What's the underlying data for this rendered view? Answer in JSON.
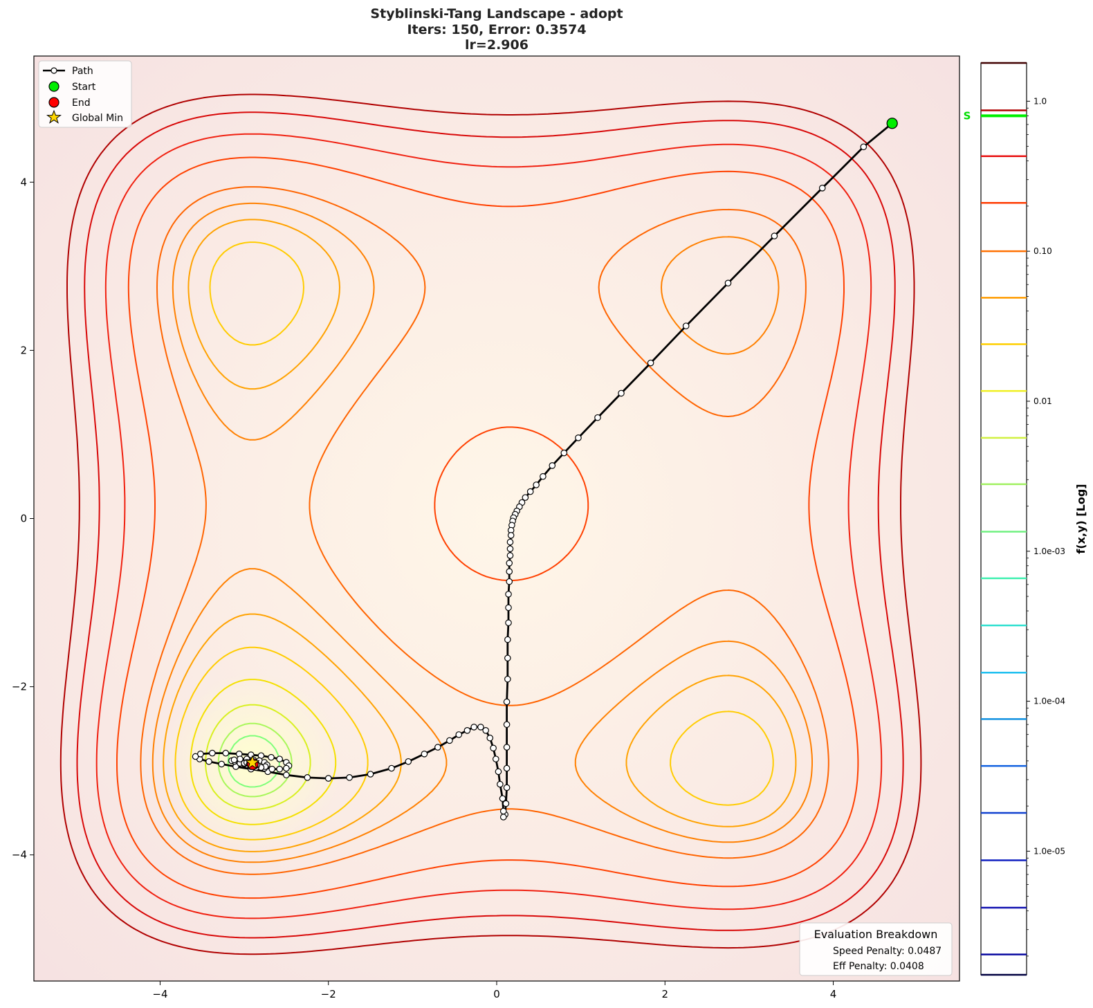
{
  "chart_data": {
    "type": "line",
    "title_lines": [
      "Styblinski-Tang Landscape - adopt",
      "Iters: 150, Error: 0.3574",
      "lr=2.906"
    ],
    "xlim": [
      -5.5,
      5.5
    ],
    "ylim": [
      -5.5,
      5.5
    ],
    "x_ticks": [
      -4,
      -2,
      0,
      2,
      4
    ],
    "y_ticks": [
      -4,
      -2,
      0,
      2,
      4
    ],
    "x_tick_labels": [
      "−4",
      "−2",
      "0",
      "2",
      "4"
    ],
    "y_tick_labels": [
      "−4",
      "−2",
      "0",
      "2",
      "4"
    ],
    "grid": false,
    "legend_position": "top-left",
    "legend": {
      "path": "Path",
      "start": "Start",
      "end": "End",
      "global_min": "Global Min"
    },
    "colors": {
      "path": "#000000",
      "start": "#00ee00",
      "end": "#ff0000",
      "global_min": "#ffd700",
      "background": "#fdeeea"
    },
    "start_point": [
      4.7,
      4.7
    ],
    "end_point": [
      -2.9,
      -2.92
    ],
    "global_min_point": [
      -2.903534,
      -2.903534
    ],
    "path_points": [
      [
        4.7,
        4.7
      ],
      [
        4.36,
        4.42
      ],
      [
        3.87,
        3.93
      ],
      [
        3.3,
        3.36
      ],
      [
        2.75,
        2.8
      ],
      [
        2.25,
        2.29
      ],
      [
        1.83,
        1.85
      ],
      [
        1.48,
        1.49
      ],
      [
        1.2,
        1.2
      ],
      [
        0.97,
        0.96
      ],
      [
        0.8,
        0.78
      ],
      [
        0.66,
        0.63
      ],
      [
        0.55,
        0.5
      ],
      [
        0.47,
        0.4
      ],
      [
        0.4,
        0.32
      ],
      [
        0.34,
        0.25
      ],
      [
        0.3,
        0.19
      ],
      [
        0.27,
        0.14
      ],
      [
        0.24,
        0.09
      ],
      [
        0.22,
        0.05
      ],
      [
        0.2,
        0.01
      ],
      [
        0.19,
        -0.03
      ],
      [
        0.18,
        -0.08
      ],
      [
        0.17,
        -0.14
      ],
      [
        0.17,
        -0.2
      ],
      [
        0.16,
        -0.28
      ],
      [
        0.16,
        -0.36
      ],
      [
        0.16,
        -0.44
      ],
      [
        0.15,
        -0.53
      ],
      [
        0.15,
        -0.63
      ],
      [
        0.15,
        -0.75
      ],
      [
        0.14,
        -0.9
      ],
      [
        0.14,
        -1.06
      ],
      [
        0.14,
        -1.24
      ],
      [
        0.13,
        -1.44
      ],
      [
        0.13,
        -1.66
      ],
      [
        0.13,
        -1.91
      ],
      [
        0.12,
        -2.18
      ],
      [
        0.12,
        -2.45
      ],
      [
        0.12,
        -2.72
      ],
      [
        0.12,
        -2.97
      ],
      [
        0.12,
        -3.2
      ],
      [
        0.11,
        -3.39
      ],
      [
        0.1,
        -3.52
      ],
      [
        0.08,
        -3.55
      ],
      [
        0.08,
        -3.48
      ],
      [
        0.07,
        -3.33
      ],
      [
        0.04,
        -3.16
      ],
      [
        0.02,
        -3.01
      ],
      [
        -0.01,
        -2.86
      ],
      [
        -0.04,
        -2.73
      ],
      [
        -0.08,
        -2.61
      ],
      [
        -0.13,
        -2.52
      ],
      [
        -0.19,
        -2.48
      ],
      [
        -0.27,
        -2.48
      ],
      [
        -0.35,
        -2.52
      ],
      [
        -0.45,
        -2.57
      ],
      [
        -0.56,
        -2.64
      ],
      [
        -0.7,
        -2.72
      ],
      [
        -0.86,
        -2.8
      ],
      [
        -1.05,
        -2.89
      ],
      [
        -1.25,
        -2.97
      ],
      [
        -1.5,
        -3.04
      ],
      [
        -1.75,
        -3.08
      ],
      [
        -2.0,
        -3.09
      ],
      [
        -2.25,
        -3.08
      ],
      [
        -2.5,
        -3.05
      ],
      [
        -2.72,
        -3.01
      ],
      [
        -2.92,
        -2.98
      ],
      [
        -3.1,
        -2.95
      ],
      [
        -3.27,
        -2.92
      ],
      [
        -3.42,
        -2.89
      ],
      [
        -3.53,
        -2.86
      ],
      [
        -3.58,
        -2.83
      ],
      [
        -3.52,
        -2.8
      ],
      [
        -3.38,
        -2.79
      ],
      [
        -3.22,
        -2.79
      ],
      [
        -3.06,
        -2.8
      ],
      [
        -2.92,
        -2.81
      ],
      [
        -2.8,
        -2.82
      ],
      [
        -2.68,
        -2.84
      ],
      [
        -2.58,
        -2.86
      ],
      [
        -2.5,
        -2.9
      ],
      [
        -2.47,
        -2.94
      ],
      [
        -2.5,
        -2.97
      ],
      [
        -2.58,
        -2.98
      ],
      [
        -2.67,
        -2.98
      ],
      [
        -2.76,
        -2.97
      ],
      [
        -2.86,
        -2.95
      ],
      [
        -2.96,
        -2.93
      ],
      [
        -3.05,
        -2.91
      ],
      [
        -3.12,
        -2.89
      ],
      [
        -3.15,
        -2.88
      ],
      [
        -3.12,
        -2.87
      ],
      [
        -3.05,
        -2.86
      ],
      [
        -2.97,
        -2.86
      ],
      [
        -2.89,
        -2.87
      ],
      [
        -2.82,
        -2.88
      ],
      [
        -2.76,
        -2.9
      ],
      [
        -2.73,
        -2.93
      ],
      [
        -2.75,
        -2.95
      ],
      [
        -2.8,
        -2.96
      ],
      [
        -2.86,
        -2.96
      ],
      [
        -2.92,
        -2.95
      ],
      [
        -2.97,
        -2.93
      ],
      [
        -3.0,
        -2.92
      ],
      [
        -3.0,
        -2.91
      ],
      [
        -2.97,
        -2.9
      ],
      [
        -2.93,
        -2.9
      ],
      [
        -2.89,
        -2.9
      ],
      [
        -2.86,
        -2.91
      ],
      [
        -2.85,
        -2.93
      ],
      [
        -2.87,
        -2.94
      ],
      [
        -2.9,
        -2.94
      ],
      [
        -2.93,
        -2.93
      ],
      [
        -2.94,
        -2.92
      ],
      [
        -2.93,
        -2.91
      ],
      [
        -2.91,
        -2.91
      ],
      [
        -2.89,
        -2.92
      ],
      [
        -2.88,
        -2.93
      ],
      [
        -2.9,
        -2.93
      ],
      [
        -2.9,
        -2.92
      ]
    ],
    "contour_levels_normalized": [
      0.003,
      0.006,
      0.012,
      0.022,
      0.036,
      0.05,
      0.065,
      0.085,
      0.135,
      0.19,
      0.255,
      0.32
    ],
    "colorbar": {
      "label": "f(x,y) [Log]",
      "scale": "log",
      "range": [
        1.5e-06,
        1.8
      ],
      "major_ticks": [
        1.0,
        0.1,
        0.01,
        0.001,
        0.0001,
        1e-05
      ],
      "major_tick_labels": [
        "1.0",
        "0.10",
        "0.01",
        "1.0e-03",
        "1.0e-04",
        "1.0e-05"
      ],
      "start_marker_value": 0.8,
      "start_marker_label": "S",
      "level_lines": [
        1.8,
        0.87,
        0.43,
        0.21,
        0.1,
        0.049,
        0.024,
        0.0117,
        0.0057,
        0.0028,
        0.00135,
        0.00066,
        0.00032,
        0.000155,
        7.6e-05,
        3.7e-05,
        1.8e-05,
        8.7e-06,
        4.2e-06,
        2.05e-06,
        1.5e-06
      ],
      "level_colors": [
        "#400000",
        "#b00000",
        "#e81010",
        "#ff3a00",
        "#ff7000",
        "#ff9c00",
        "#ffcf00",
        "#f0f020",
        "#d0f040",
        "#a0f060",
        "#70f080",
        "#40f0b0",
        "#30e0d0",
        "#20c0f0",
        "#1090e0",
        "#1060e0",
        "#1040d0",
        "#1020c0",
        "#1010b0",
        "#0808a0",
        "#000040"
      ]
    },
    "annotation_box": {
      "title": "Evaluation Breakdown",
      "lines": [
        "Speed Penalty: 0.0487",
        "Eff Penalty: 0.0408"
      ]
    }
  }
}
